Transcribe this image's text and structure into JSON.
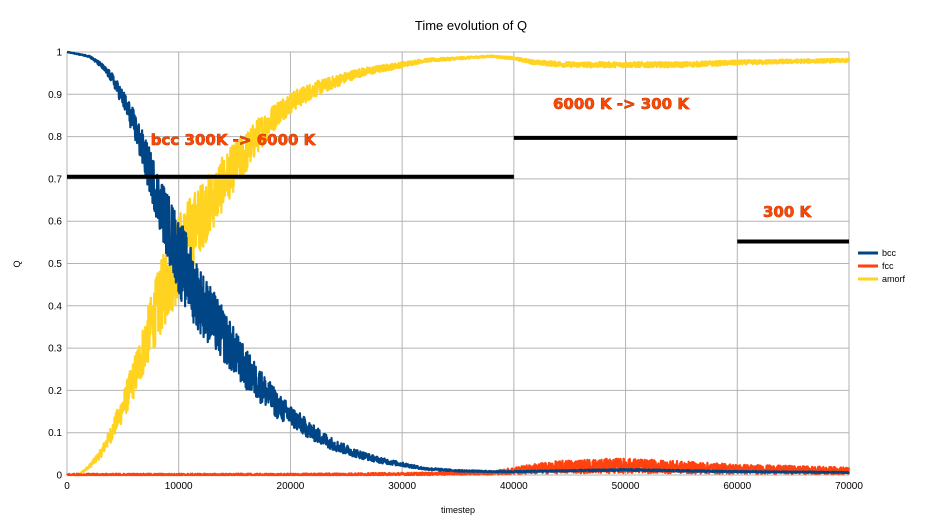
{
  "chart_data": {
    "type": "line",
    "title": "Time evolution of Q",
    "xlabel": "timestep",
    "ylabel": "Q",
    "xlim": [
      0,
      70000
    ],
    "ylim": [
      0,
      1
    ],
    "x_ticks": [
      "0",
      "10000",
      "20000",
      "30000",
      "40000",
      "50000",
      "60000",
      "70000"
    ],
    "y_ticks": [
      "0",
      "0.1",
      "0.2",
      "0.3",
      "0.4",
      "0.5",
      "0.6",
      "0.7",
      "0.8",
      "0.9",
      "1"
    ],
    "grid": true,
    "legend_position": "right",
    "series": [
      {
        "name": "bcc",
        "color": "#004586",
        "x": [
          0,
          2000,
          3000,
          4000,
          5000,
          6000,
          7000,
          8000,
          9000,
          10000,
          11000,
          12000,
          13000,
          14000,
          15000,
          16000,
          17000,
          18000,
          19000,
          20000,
          22000,
          24000,
          26000,
          28000,
          30000,
          32000,
          35000,
          38000,
          40000,
          45000,
          50000,
          55000,
          60000,
          65000,
          70000
        ],
        "y": [
          1.0,
          0.99,
          0.97,
          0.94,
          0.89,
          0.83,
          0.75,
          0.67,
          0.59,
          0.52,
          0.46,
          0.41,
          0.37,
          0.33,
          0.29,
          0.25,
          0.22,
          0.19,
          0.16,
          0.14,
          0.1,
          0.07,
          0.05,
          0.035,
          0.025,
          0.015,
          0.01,
          0.008,
          0.008,
          0.01,
          0.012,
          0.01,
          0.008,
          0.007,
          0.006
        ]
      },
      {
        "name": "fcc",
        "color": "#ff420e",
        "x": [
          0,
          10000,
          20000,
          30000,
          38000,
          40000,
          42000,
          45000,
          50000,
          55000,
          60000,
          65000,
          70000
        ],
        "y": [
          0.0,
          0.0,
          0.0,
          0.002,
          0.005,
          0.01,
          0.015,
          0.02,
          0.022,
          0.018,
          0.014,
          0.012,
          0.01
        ]
      },
      {
        "name": "amorf",
        "color": "#ffd320",
        "x": [
          0,
          1000,
          2000,
          3000,
          4000,
          5000,
          6000,
          7000,
          8000,
          9000,
          10000,
          11000,
          12000,
          13000,
          14000,
          15000,
          16000,
          17000,
          18000,
          19000,
          20000,
          22000,
          24000,
          26000,
          28000,
          30000,
          32000,
          35000,
          38000,
          40000,
          42000,
          45000,
          50000,
          55000,
          60000,
          65000,
          70000
        ],
        "y": [
          0.0,
          0.0,
          0.02,
          0.05,
          0.1,
          0.16,
          0.23,
          0.31,
          0.39,
          0.46,
          0.52,
          0.57,
          0.61,
          0.65,
          0.69,
          0.73,
          0.76,
          0.8,
          0.83,
          0.86,
          0.88,
          0.91,
          0.93,
          0.95,
          0.96,
          0.97,
          0.98,
          0.985,
          0.99,
          0.985,
          0.975,
          0.97,
          0.97,
          0.97,
          0.975,
          0.978,
          0.98
        ]
      }
    ],
    "annotations": [
      {
        "text": "bcc 300K -> 6000 K",
        "x": 7500,
        "y": 0.78,
        "line": {
          "x0": 0,
          "x1": 40000,
          "y": 0.705
        }
      },
      {
        "text": "6000 K -> 300 K",
        "x": 43500,
        "y": 0.865,
        "line": {
          "x0": 40000,
          "x1": 60000,
          "y": 0.797
        }
      },
      {
        "text": "300 K",
        "x": 62300,
        "y": 0.61,
        "line": {
          "x0": 60000,
          "x1": 70000,
          "y": 0.552
        }
      }
    ]
  }
}
